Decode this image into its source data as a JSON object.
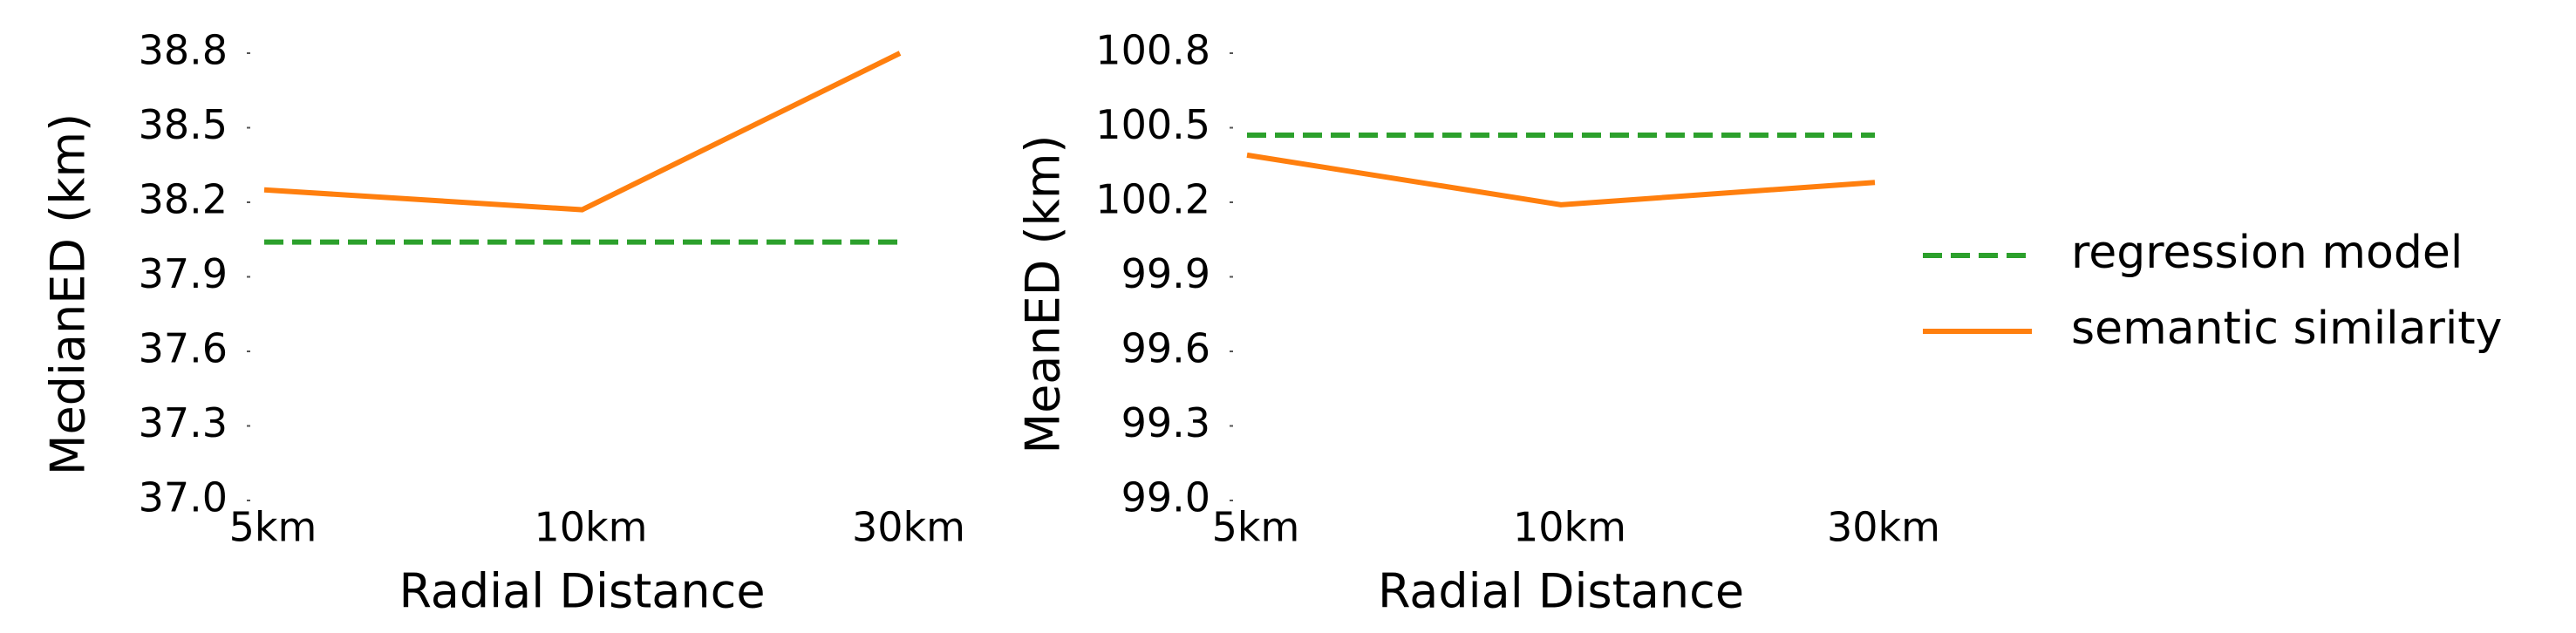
{
  "chart_data": [
    {
      "type": "line",
      "xlabel": "Radial Distance",
      "ylabel": "MedianED (km)",
      "categories": [
        "5km",
        "10km",
        "30km"
      ],
      "series": [
        {
          "name": "regression model",
          "color": "#2ca02c",
          "dashed": true,
          "values": [
            38.04,
            38.04,
            38.04
          ]
        },
        {
          "name": "semantic similarity",
          "color": "#ff7f0e",
          "dashed": false,
          "values": [
            38.25,
            38.17,
            38.8
          ]
        }
      ],
      "ylim": [
        37.0,
        38.8
      ],
      "yticks": [
        {
          "value": 37.0,
          "label": "37.0"
        },
        37.3,
        37.6,
        37.9,
        38.2,
        38.5,
        38.8
      ]
    },
    {
      "type": "line",
      "xlabel": "Radial Distance",
      "ylabel": "MeanED (km)",
      "categories": [
        "5km",
        "10km",
        "30km"
      ],
      "series": [
        {
          "name": "regression model",
          "color": "#2ca02c",
          "dashed": true,
          "values": [
            100.47,
            100.47,
            100.47
          ]
        },
        {
          "name": "semantic similarity",
          "color": "#ff7f0e",
          "dashed": false,
          "values": [
            100.39,
            100.19,
            100.28
          ]
        }
      ],
      "ylim": [
        99.0,
        100.8
      ],
      "yticks": [
        {
          "value": 99.0,
          "label": "99.0"
        },
        99.3,
        99.6,
        99.9,
        100.2,
        100.5,
        100.8
      ],
      "legend": "right"
    }
  ]
}
